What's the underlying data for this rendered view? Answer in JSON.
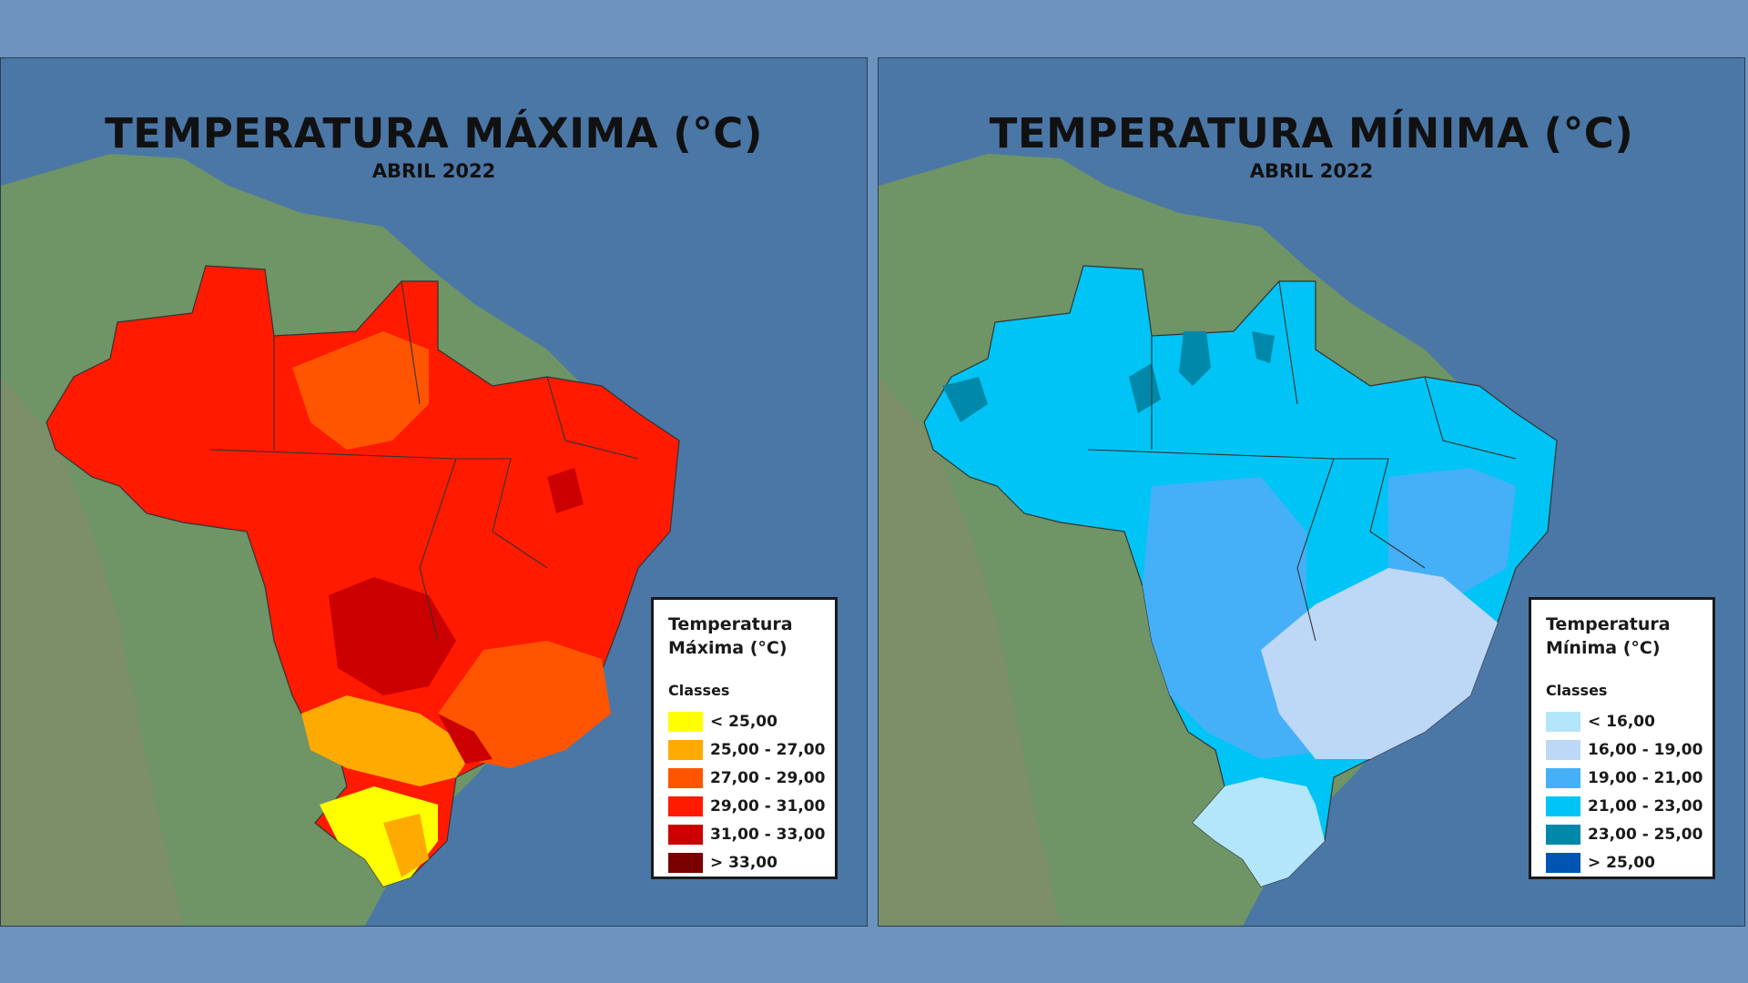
{
  "maps": [
    {
      "id": "max",
      "title": "TEMPERATURA MÁXIMA (°C)",
      "subtitle": "ABRIL 2022",
      "legend_title": "Temperatura Máxima (°C)",
      "legend_subtitle": "Classes",
      "classes": [
        {
          "label": "< 25,00",
          "color": "#ffff00"
        },
        {
          "label": "25,00 - 27,00",
          "color": "#ffaa00"
        },
        {
          "label": "27,00 - 29,00",
          "color": "#ff5500"
        },
        {
          "label": "29,00 - 31,00",
          "color": "#ff1a00"
        },
        {
          "label": "31,00 - 33,00",
          "color": "#cc0000"
        },
        {
          "label": "> 33,00",
          "color": "#7a0000"
        }
      ]
    },
    {
      "id": "min",
      "title": "TEMPERATURA MÍNIMA (°C)",
      "subtitle": "ABRIL 2022",
      "legend_title": "Temperatura Mínima (°C)",
      "legend_subtitle": "Classes",
      "classes": [
        {
          "label": "< 16,00",
          "color": "#b3e6fb"
        },
        {
          "label": "16,00 - 19,00",
          "color": "#bdd7f7"
        },
        {
          "label": "19,00 - 21,00",
          "color": "#45b0f7"
        },
        {
          "label": "21,00 - 23,00",
          "color": "#00c4f5"
        },
        {
          "label": "23,00 - 25,00",
          "color": "#0088aa"
        },
        {
          "label": "> 25,00",
          "color": "#0055b3"
        }
      ]
    }
  ],
  "colors": {
    "ocean": "#4b77a6",
    "land": "#6f9466",
    "background": "#6b93bd"
  }
}
